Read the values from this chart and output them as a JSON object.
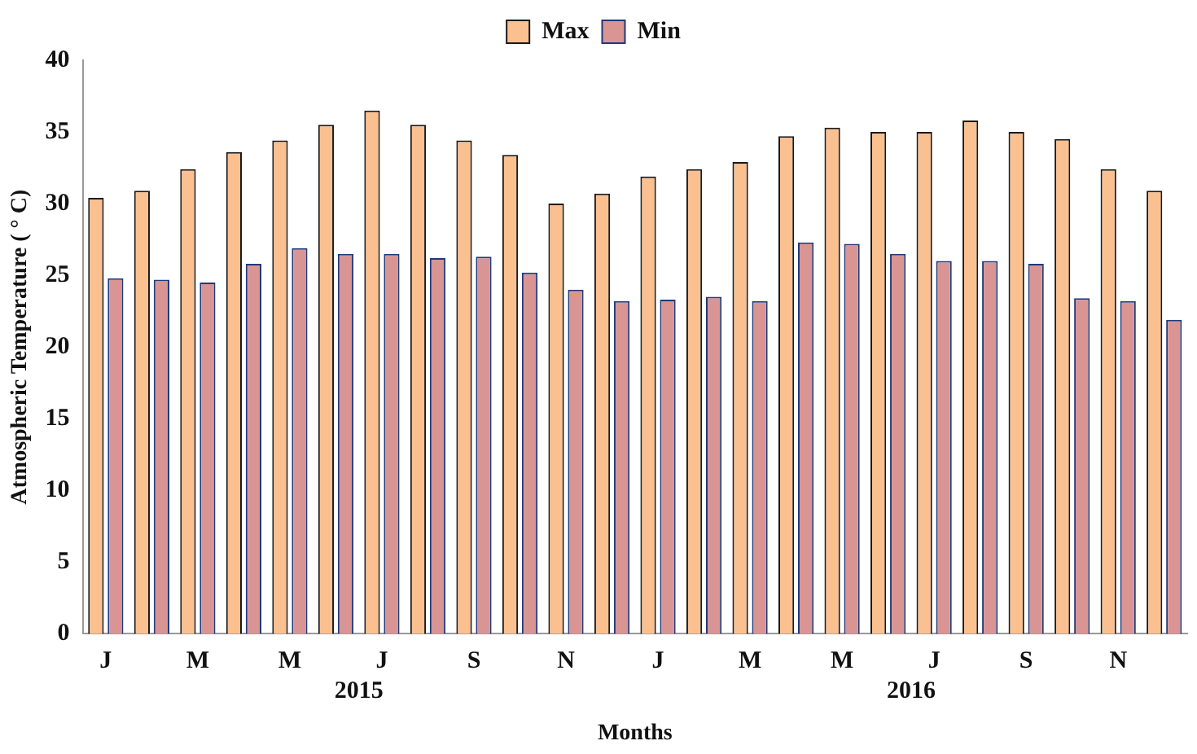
{
  "chart_data": {
    "type": "bar",
    "xlabel": "Months",
    "ylabel": "Atmospheric Temperature ( ° C)",
    "categories": [
      "J",
      null,
      "M",
      null,
      "M",
      null,
      "J",
      null,
      "S",
      null,
      "N",
      null,
      "J",
      null,
      "M",
      null,
      "M",
      null,
      "J",
      null,
      "S",
      null,
      "N",
      null
    ],
    "series": [
      {
        "name": "Max",
        "color": "#fac090",
        "values": [
          30.4,
          30.9,
          32.4,
          33.6,
          34.4,
          35.5,
          36.5,
          35.5,
          34.4,
          33.4,
          30.0,
          30.7,
          31.9,
          32.4,
          32.9,
          34.7,
          35.3,
          35.0,
          35.0,
          35.8,
          35.0,
          34.5,
          32.4,
          30.9
        ]
      },
      {
        "name": "Min",
        "color": "#d99594",
        "values": [
          24.8,
          24.7,
          24.5,
          25.8,
          26.9,
          26.5,
          26.5,
          26.2,
          26.3,
          25.2,
          24.0,
          23.2,
          23.3,
          23.5,
          23.2,
          27.3,
          27.2,
          26.5,
          26.0,
          26.0,
          25.8,
          23.4,
          23.2,
          21.9
        ]
      }
    ],
    "ylim": [
      0,
      40
    ],
    "yticks": [
      0,
      5,
      10,
      15,
      20,
      25,
      30,
      35,
      40
    ],
    "grid": false,
    "legend": "top",
    "annotations": [
      "2015",
      "2016"
    ]
  }
}
